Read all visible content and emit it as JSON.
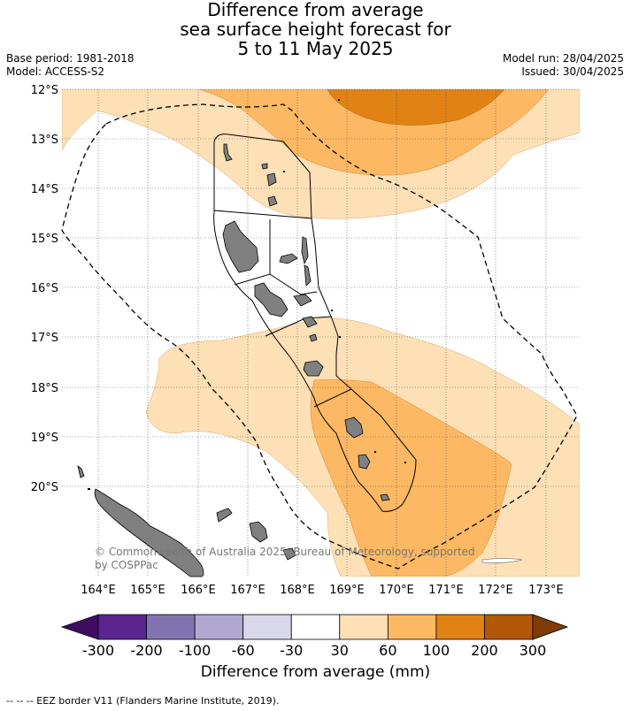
{
  "title": {
    "line1": "Difference from average",
    "line2": "sea surface height forecast for",
    "line3": "5 to 11 May 2025"
  },
  "meta_left": {
    "base_period": "Base period: 1981-2018",
    "model": "Model: ACCESS-S2"
  },
  "meta_right": {
    "model_run": "Model run: 28/04/2025",
    "issued": "Issued: 30/04/2025"
  },
  "map": {
    "lat_labels": [
      "12°S",
      "13°S",
      "14°S",
      "15°S",
      "16°S",
      "17°S",
      "18°S",
      "19°S",
      "20°S"
    ],
    "lon_labels": [
      "164°E",
      "165°E",
      "166°E",
      "167°E",
      "168°E",
      "169°E",
      "170°E",
      "171°E",
      "172°E",
      "173°E"
    ],
    "land_color": "#808080",
    "copyright": "© Commonwealth of Australia 2025, Bureau of Meteorology, supported by COSPPac"
  },
  "colorbar": {
    "tick_labels": [
      "-300",
      "-200",
      "-100",
      "-60",
      "-30",
      "30",
      "60",
      "100",
      "200",
      "300"
    ],
    "colors": [
      "#3f0d60",
      "#5b2590",
      "#8273b1",
      "#b0a8d1",
      "#d9d8ea",
      "#ffffff",
      "#fee0b6",
      "#fdb863",
      "#e08214",
      "#b35806",
      "#7f3b08"
    ],
    "label": "Difference from average (mm)"
  },
  "footnote": "--  --  -- EEZ border V11 (Flanders Marine Institute, 2019)."
}
